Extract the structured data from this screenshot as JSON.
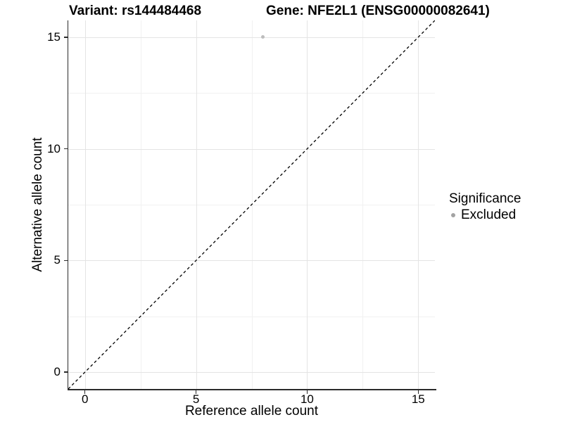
{
  "chart_data": {
    "type": "scatter",
    "title_left": "Variant: rs144484468",
    "title_right": "Gene: NFE2L1 (ENSG00000082641)",
    "xlabel": "Reference allele count",
    "ylabel": "Alternative allele count",
    "xlim": [
      -0.75,
      15.75
    ],
    "ylim": [
      -0.75,
      15.75
    ],
    "x_major_ticks": [
      0,
      5,
      10,
      15
    ],
    "y_major_ticks": [
      0,
      5,
      10,
      15
    ],
    "x_minor_ticks": [
      2.5,
      7.5,
      12.5
    ],
    "y_minor_ticks": [
      2.5,
      7.5,
      12.5
    ],
    "grid": true,
    "points": [
      {
        "x": 8,
        "y": 15,
        "series": "Excluded",
        "color": "#bdbdbd",
        "size": 5
      }
    ],
    "reference_line": {
      "type": "identity",
      "style": "dashed",
      "color": "#000000"
    },
    "legend": {
      "title": "Significance",
      "position": "right",
      "items": [
        {
          "label": "Excluded",
          "color": "#a3a3a3"
        }
      ]
    }
  },
  "colors": {
    "background": "#ffffff",
    "axis_line": "#2b2b2b",
    "grid_major": "#e4e4e4",
    "grid_minor": "#f1f1f1",
    "text": "#000000",
    "point": "#bdbdbd",
    "legend_key": "#a3a3a3"
  }
}
